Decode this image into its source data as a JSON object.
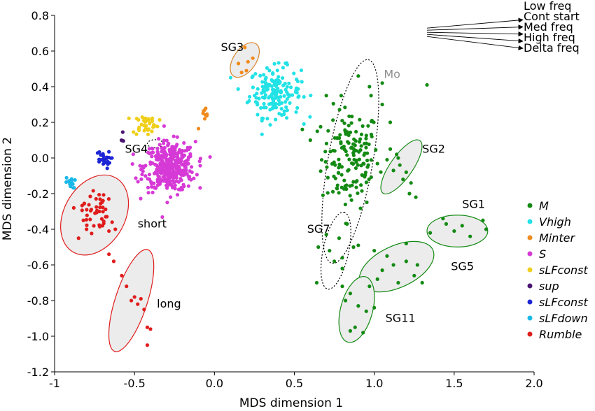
{
  "chart_data": {
    "type": "scatter",
    "xlabel": "MDS dimension 1",
    "ylabel": "MDS dimension 2",
    "xlim": [
      -1,
      2
    ],
    "ylim": [
      -1.2,
      0.8
    ],
    "xticks": [
      -1,
      -0.5,
      0,
      0.5,
      1,
      1.5,
      2
    ],
    "xtick_labels": [
      "-1",
      "-0.5",
      "0.0",
      "0.5",
      "1.0",
      "1.5",
      "2.0"
    ],
    "yticks": [
      0.8,
      0.6,
      0.4,
      0.2,
      0,
      -0.2,
      -0.4,
      -0.6,
      -0.8,
      -1,
      -1.2
    ],
    "ytick_labels": [
      "0.8",
      "0.6",
      "0.4",
      "0.2",
      "0.0",
      "-0.2",
      "-0.4",
      "-0.6",
      "-0.8",
      "-1.0",
      "-1.2"
    ],
    "grid": false,
    "legend_position": "right",
    "series": [
      {
        "name": "M",
        "color": "#138a13",
        "cluster": {
          "cx": 0.85,
          "cy": 0.0,
          "sx": 0.09,
          "sy": 0.14,
          "n": 150
        }
      },
      {
        "name": "Vhigh",
        "color": "#22e2e6",
        "cluster": {
          "cx": 0.38,
          "cy": 0.37,
          "sx": 0.08,
          "sy": 0.07,
          "n": 170
        }
      },
      {
        "name": "Minter",
        "color": "#f08a1c",
        "cluster": {
          "cx": -0.06,
          "cy": 0.22,
          "sx": 0.02,
          "sy": 0.03,
          "n": 10
        }
      },
      {
        "name": "S",
        "color": "#d63ad6",
        "cluster": {
          "cx": -0.28,
          "cy": -0.05,
          "sx": 0.08,
          "sy": 0.07,
          "n": 380
        }
      },
      {
        "name": "sLFconst",
        "color": "#f0cf1a",
        "cluster": {
          "cx": -0.43,
          "cy": 0.19,
          "sx": 0.04,
          "sy": 0.03,
          "n": 40
        }
      },
      {
        "name": "sup",
        "color": "#4a1470",
        "cluster": {
          "cx": -0.58,
          "cy": 0.11,
          "sx": 0.01,
          "sy": 0.015,
          "n": 5
        }
      },
      {
        "name": "sLFconst",
        "color": "#1c25d4",
        "cluster": {
          "cx": -0.7,
          "cy": -0.01,
          "sx": 0.025,
          "sy": 0.025,
          "n": 25
        }
      },
      {
        "name": "sLFdown",
        "color": "#1ab8e8",
        "cluster": {
          "cx": -0.9,
          "cy": -0.14,
          "sx": 0.015,
          "sy": 0.015,
          "n": 15
        }
      },
      {
        "name": "Rumble",
        "color": "#e01c1c",
        "cluster": {
          "cx": -0.75,
          "cy": -0.29,
          "sx": 0.04,
          "sy": 0.06,
          "n": 40
        }
      }
    ],
    "extra_points": {
      "SG3": {
        "color": "#f08a1c",
        "points": [
          [
            0.19,
            0.62
          ],
          [
            0.24,
            0.56
          ],
          [
            0.15,
            0.53
          ],
          [
            0.21,
            0.54
          ],
          [
            0.17,
            0.48
          ],
          [
            0.2,
            0.49
          ]
        ]
      },
      "SG2": {
        "color": "#138a13",
        "points": [
          [
            1.1,
            0.05
          ],
          [
            1.14,
            0.02
          ],
          [
            1.08,
            -0.01
          ],
          [
            1.16,
            -0.04
          ],
          [
            1.12,
            -0.07
          ],
          [
            1.2,
            -0.08
          ],
          [
            1.18,
            -0.12
          ],
          [
            1.23,
            -0.14
          ],
          [
            1.26,
            -0.22
          ],
          [
            1.22,
            -0.2
          ],
          [
            1.15,
            0.0
          ]
        ]
      },
      "SG1": {
        "color": "#138a13",
        "points": [
          [
            1.35,
            -0.42
          ],
          [
            1.45,
            -0.37
          ],
          [
            1.5,
            -0.41
          ],
          [
            1.55,
            -0.38
          ],
          [
            1.6,
            -0.44
          ],
          [
            1.7,
            -0.4
          ],
          [
            1.68,
            -0.35
          ],
          [
            1.43,
            -0.34
          ]
        ]
      },
      "SG5": {
        "color": "#138a13",
        "points": [
          [
            1.0,
            -0.52
          ],
          [
            1.08,
            -0.55
          ],
          [
            1.12,
            -0.6
          ],
          [
            1.2,
            -0.58
          ],
          [
            1.25,
            -0.66
          ],
          [
            1.3,
            -0.7
          ],
          [
            1.15,
            -0.7
          ],
          [
            1.05,
            -0.63
          ],
          [
            1.02,
            -0.68
          ],
          [
            1.2,
            -0.48
          ],
          [
            1.27,
            -0.6
          ]
        ]
      },
      "SG11": {
        "color": "#138a13",
        "points": [
          [
            0.8,
            -0.72
          ],
          [
            0.85,
            -0.76
          ],
          [
            0.82,
            -0.8
          ],
          [
            0.9,
            -0.83
          ],
          [
            0.95,
            -0.86
          ],
          [
            0.88,
            -0.95
          ],
          [
            0.93,
            -0.98
          ],
          [
            0.85,
            -0.97
          ],
          [
            0.97,
            -0.72
          ],
          [
            1.0,
            -0.84
          ]
        ]
      },
      "SG7": {
        "color": "#138a13",
        "points": [
          [
            0.65,
            -0.5
          ],
          [
            0.7,
            -0.43
          ],
          [
            0.72,
            -0.52
          ],
          [
            0.75,
            -0.58
          ],
          [
            0.8,
            -0.56
          ],
          [
            0.78,
            -0.45
          ],
          [
            0.83,
            -0.37
          ],
          [
            0.8,
            -0.62
          ],
          [
            0.64,
            -0.7
          ],
          [
            0.87,
            -0.5
          ],
          [
            0.9,
            -0.49
          ]
        ]
      },
      "Mo_outliers": {
        "color": "#138a13",
        "points": [
          [
            0.9,
            0.46
          ],
          [
            0.97,
            0.4
          ],
          [
            1.05,
            0.3
          ],
          [
            0.55,
            0.16
          ],
          [
            0.6,
            0.1
          ],
          [
            1.1,
            0.2
          ],
          [
            1.05,
            0.42
          ],
          [
            0.98,
            0.35
          ],
          [
            0.7,
            0.35
          ],
          [
            1.33,
            0.41
          ]
        ]
      },
      "short": {
        "color": "#e01c1c",
        "points": [
          [
            -0.88,
            -0.28
          ],
          [
            -0.82,
            -0.35
          ],
          [
            -0.8,
            -0.4
          ],
          [
            -0.85,
            -0.45
          ],
          [
            -0.7,
            -0.38
          ],
          [
            -0.66,
            -0.41
          ],
          [
            -0.68,
            -0.33
          ],
          [
            -0.72,
            -0.3
          ],
          [
            -0.64,
            -0.36
          ],
          [
            -0.62,
            -0.4
          ]
        ]
      },
      "long": {
        "color": "#e01c1c",
        "points": [
          [
            -0.66,
            -0.54
          ],
          [
            -0.63,
            -0.58
          ],
          [
            -0.58,
            -0.66
          ],
          [
            -0.55,
            -0.72
          ],
          [
            -0.5,
            -0.78
          ],
          [
            -0.48,
            -0.82
          ],
          [
            -0.46,
            -0.79
          ],
          [
            -0.44,
            -0.85
          ],
          [
            -0.42,
            -0.95
          ],
          [
            -0.4,
            -0.96
          ],
          [
            -0.42,
            -1.05
          ],
          [
            -0.52,
            -0.8
          ]
        ]
      }
    },
    "ellipses": [
      {
        "label": "SG3",
        "style": "solid",
        "color": "#d7862a",
        "fill": "#ececec",
        "cx": 0.19,
        "cy": 0.55,
        "rx": 0.11,
        "ry": 0.07,
        "angle": -55
      },
      {
        "label": "Mo",
        "style": "dotted",
        "color": "#000000",
        "fill": "none",
        "cx": 0.85,
        "cy": -0.02,
        "rx": 0.58,
        "ry": 0.14,
        "angle": -80
      },
      {
        "label": "SG2",
        "style": "solid",
        "color": "#138a13",
        "fill": "#ececec",
        "cx": 1.17,
        "cy": -0.05,
        "rx": 0.18,
        "ry": 0.07,
        "angle": -55
      },
      {
        "label": "SG1",
        "style": "solid",
        "color": "#138a13",
        "fill": "#ececec",
        "cx": 1.52,
        "cy": -0.41,
        "rx": 0.19,
        "ry": 0.1,
        "angle": 0
      },
      {
        "label": "SG5",
        "style": "solid",
        "color": "#138a13",
        "fill": "#ececec",
        "cx": 1.14,
        "cy": -0.61,
        "rx": 0.25,
        "ry": 0.13,
        "angle": -25
      },
      {
        "label": "SG11",
        "style": "solid",
        "color": "#138a13",
        "fill": "#ececec",
        "cx": 0.89,
        "cy": -0.85,
        "rx": 0.19,
        "ry": 0.1,
        "angle": -75
      },
      {
        "label": "SG7",
        "style": "dotted",
        "color": "#000000",
        "fill": "none",
        "cx": 0.76,
        "cy": -0.52,
        "rx": 0.22,
        "ry": 0.08,
        "angle": -78
      },
      {
        "label": "SG4",
        "style": "dotted",
        "color": "#000000",
        "fill": "none",
        "cx": -0.37,
        "cy": 0.08,
        "rx": 0.05,
        "ry": 0.025,
        "angle": 0
      },
      {
        "label": "short",
        "style": "solid",
        "color": "#e01c1c",
        "fill": "#ececec",
        "cx": -0.75,
        "cy": -0.32,
        "rx": 0.24,
        "ry": 0.19,
        "angle": -60
      },
      {
        "label": "long",
        "style": "solid",
        "color": "#e01c1c",
        "fill": "#ececec",
        "cx": -0.52,
        "cy": -0.8,
        "rx": 0.3,
        "ry": 0.1,
        "angle": -72
      }
    ],
    "annotations": [
      {
        "text": "SG3",
        "x": 0.04,
        "y": 0.6
      },
      {
        "text": "Mo",
        "x": 1.06,
        "y": 0.45,
        "color": "#909090"
      },
      {
        "text": "SG2",
        "x": 1.3,
        "y": 0.03
      },
      {
        "text": "SG1",
        "x": 1.55,
        "y": -0.28
      },
      {
        "text": "SG7",
        "x": 0.58,
        "y": -0.42
      },
      {
        "text": "SG5",
        "x": 1.48,
        "y": -0.63
      },
      {
        "text": "SG11",
        "x": 1.07,
        "y": -0.92
      },
      {
        "text": "SG4",
        "x": -0.56,
        "y": 0.03
      },
      {
        "text": "short",
        "x": -0.48,
        "y": -0.39
      },
      {
        "text": "long",
        "x": -0.36,
        "y": -0.84
      }
    ],
    "loading_vectors": {
      "origin": [
        1.33,
        0.705
      ],
      "vectors": [
        {
          "label": "Low freq",
          "dx": 0.6,
          "dy": 0.07
        },
        {
          "label": "Cont start",
          "dx": 0.6,
          "dy": 0.03
        },
        {
          "label": "Med freq",
          "dx": 0.6,
          "dy": -0.01
        },
        {
          "label": "High freq",
          "dx": 0.6,
          "dy": -0.05
        },
        {
          "label": "Delta freq",
          "dx": 0.6,
          "dy": -0.09
        }
      ]
    }
  }
}
